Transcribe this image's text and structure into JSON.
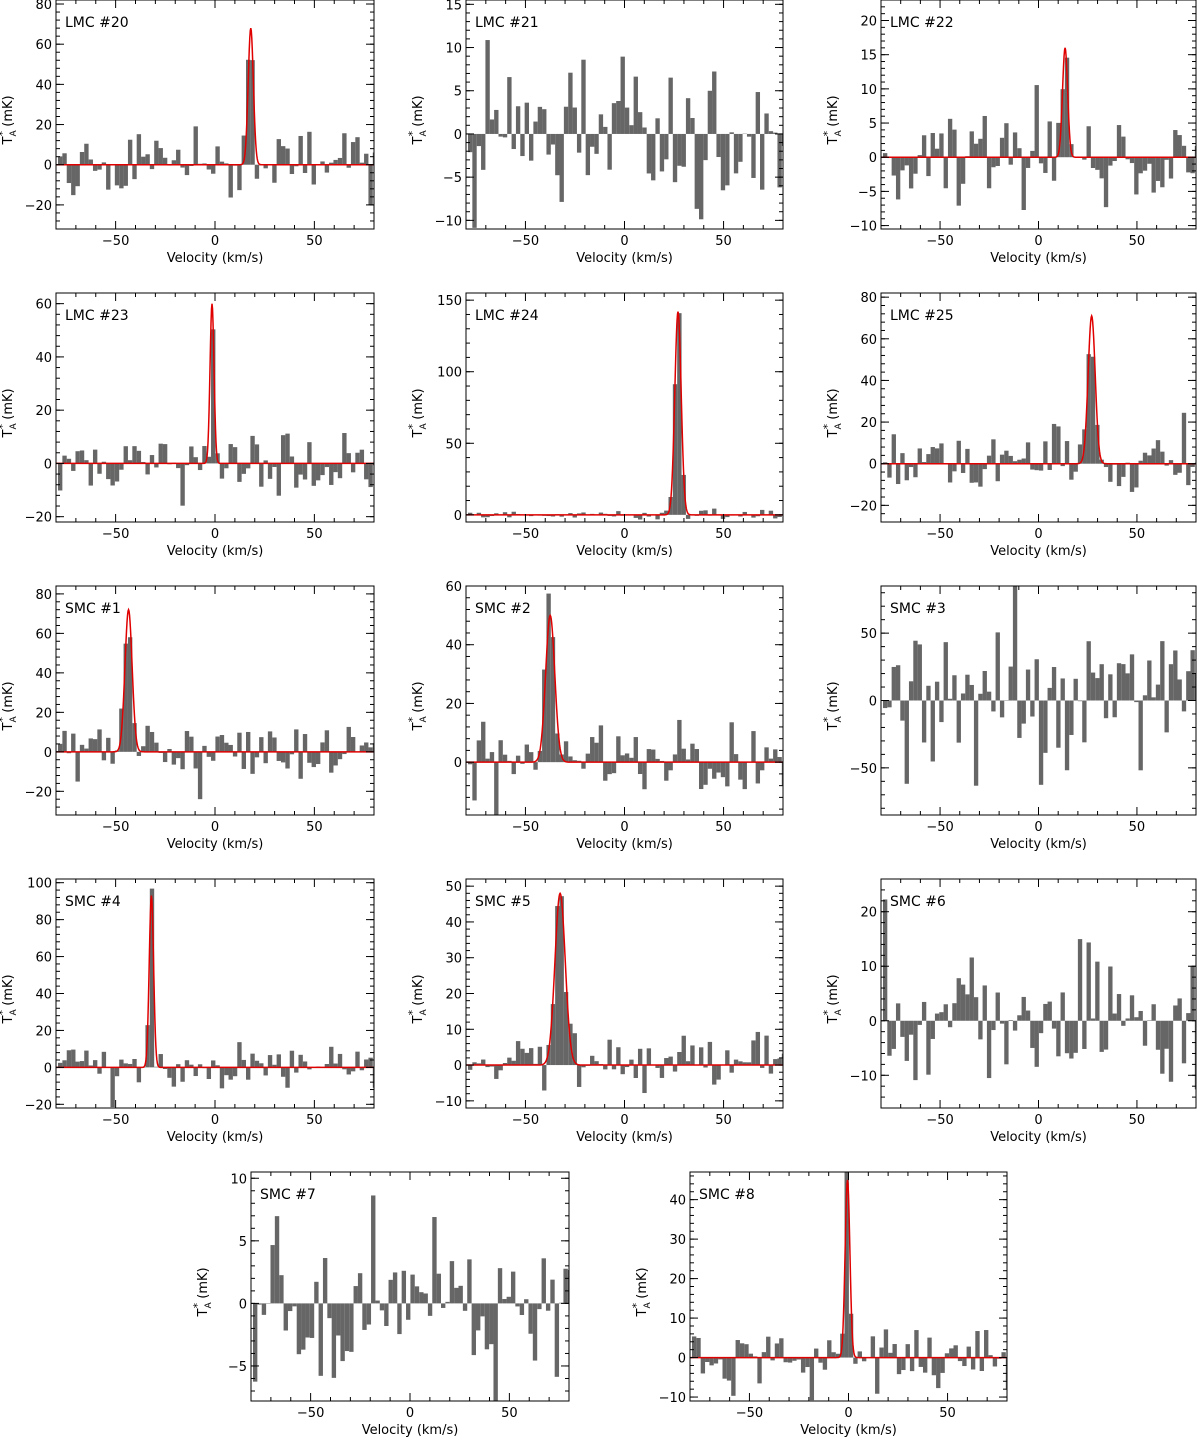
{
  "figure": {
    "xlabel": "Velocity (km/s)",
    "ylabel_main": "T",
    "ylabel_sub": "A",
    "ylabel_sup": "*",
    "ylabel_unit": " (mK)",
    "bar_color": "#666666",
    "fit_color": "#e00000"
  },
  "chart_data": [
    {
      "type": "bar",
      "title": "LMC  #20",
      "xlim": [
        -80,
        80
      ],
      "ylim": [
        -32,
        82
      ],
      "xticks": [
        -50,
        0,
        50
      ],
      "xtick_labels": [
        "−50",
        "0",
        "50"
      ],
      "yticks": [
        -20,
        0,
        20,
        40,
        60,
        80
      ],
      "ytick_labels": [
        "−20",
        "0",
        "20",
        "40",
        "60",
        "80"
      ],
      "peak": {
        "amp": 68,
        "center": 18,
        "sigma": 1.3
      },
      "noise": 8,
      "seed": 20
    },
    {
      "type": "bar",
      "title": "LMC  #21",
      "xlim": [
        -80,
        80
      ],
      "ylim": [
        -11,
        15.5
      ],
      "xticks": [
        -50,
        0,
        50
      ],
      "xtick_labels": [
        "−50",
        "0",
        "50"
      ],
      "yticks": [
        -10,
        -5,
        0,
        5,
        10,
        15
      ],
      "ytick_labels": [
        "−10",
        "−5",
        "0",
        "5",
        "10",
        "15"
      ],
      "peak": null,
      "noise": 5,
      "seed": 21
    },
    {
      "type": "bar",
      "title": "LMC  #22",
      "xlim": [
        -80,
        80
      ],
      "ylim": [
        -10.5,
        23
      ],
      "xticks": [
        -50,
        0,
        50
      ],
      "xtick_labels": [
        "−50",
        "0",
        "50"
      ],
      "yticks": [
        -10,
        -5,
        0,
        5,
        10,
        15,
        20
      ],
      "ytick_labels": [
        "−10",
        "−5",
        "0",
        "5",
        "10",
        "15",
        "20"
      ],
      "peak": {
        "amp": 16,
        "center": 13.5,
        "sigma": 1.3
      },
      "noise": 4,
      "seed": 22
    },
    {
      "type": "bar",
      "title": "LMC  #23",
      "xlim": [
        -80,
        80
      ],
      "ylim": [
        -22,
        64
      ],
      "xticks": [
        -50,
        0,
        50
      ],
      "xtick_labels": [
        "−50",
        "0",
        "50"
      ],
      "yticks": [
        -20,
        0,
        20,
        40,
        60
      ],
      "ytick_labels": [
        "−20",
        "0",
        "20",
        "40",
        "60"
      ],
      "peak": {
        "amp": 60,
        "center": -1.5,
        "sigma": 1.0
      },
      "noise": 6,
      "seed": 23
    },
    {
      "type": "bar",
      "title": "LMC  #24",
      "xlim": [
        -80,
        80
      ],
      "ylim": [
        -5,
        155
      ],
      "xticks": [
        -50,
        0,
        50
      ],
      "xtick_labels": [
        "−50",
        "0",
        "50"
      ],
      "yticks": [
        0,
        50,
        100,
        150
      ],
      "ytick_labels": [
        "0",
        "50",
        "100",
        "150"
      ],
      "peak": {
        "amp": 142,
        "center": 27,
        "sigma": 1.6
      },
      "noise": 2,
      "seed": 24
    },
    {
      "type": "bar",
      "title": "LMC  #25",
      "xlim": [
        -80,
        80
      ],
      "ylim": [
        -28,
        82
      ],
      "xticks": [
        -50,
        0,
        50
      ],
      "xtick_labels": [
        "−50",
        "0",
        "50"
      ],
      "yticks": [
        -20,
        0,
        20,
        40,
        60,
        80
      ],
      "ytick_labels": [
        "−20",
        "0",
        "20",
        "40",
        "60",
        "80"
      ],
      "peak": {
        "amp": 71,
        "center": 27,
        "sigma": 1.8
      },
      "noise": 8,
      "seed": 25
    },
    {
      "type": "bar",
      "title": "SMC  #1",
      "xlim": [
        -80,
        80
      ],
      "ylim": [
        -32,
        84
      ],
      "xticks": [
        -50,
        0,
        50
      ],
      "xtick_labels": [
        "−50",
        "0",
        "50"
      ],
      "yticks": [
        -20,
        0,
        20,
        40,
        60,
        80
      ],
      "ytick_labels": [
        "−20",
        "0",
        "20",
        "40",
        "60",
        "80"
      ],
      "peak": {
        "amp": 72,
        "center": -43.5,
        "sigma": 1.8
      },
      "noise": 8,
      "seed": 31
    },
    {
      "type": "bar",
      "title": "SMC  #2",
      "xlim": [
        -80,
        80
      ],
      "ylim": [
        -18,
        60
      ],
      "xticks": [
        -50,
        0,
        50
      ],
      "xtick_labels": [
        "−50",
        "0",
        "50"
      ],
      "yticks": [
        0,
        20,
        40,
        60
      ],
      "ytick_labels": [
        "0",
        "20",
        "40",
        "60"
      ],
      "peak": {
        "amp": 50,
        "center": -37.5,
        "sigma": 2.3
      },
      "noise": 6,
      "seed": 32
    },
    {
      "type": "bar",
      "title": "SMC  #3",
      "xlim": [
        -80,
        80
      ],
      "ylim": [
        -85,
        85
      ],
      "xticks": [
        -50,
        0,
        50
      ],
      "xtick_labels": [
        "−50",
        "0",
        "50"
      ],
      "yticks": [
        -50,
        0,
        50
      ],
      "ytick_labels": [
        "−50",
        "0",
        "50"
      ],
      "peak": null,
      "noise": 30,
      "seed": 33
    },
    {
      "type": "bar",
      "title": "SMC  #4",
      "xlim": [
        -80,
        80
      ],
      "ylim": [
        -22,
        102
      ],
      "xticks": [
        -50,
        0,
        50
      ],
      "xtick_labels": [
        "−50",
        "0",
        "50"
      ],
      "yticks": [
        -20,
        0,
        20,
        40,
        60,
        80,
        100
      ],
      "ytick_labels": [
        "−20",
        "0",
        "20",
        "40",
        "60",
        "80",
        "100"
      ],
      "peak": {
        "amp": 93,
        "center": -32,
        "sigma": 1.1
      },
      "noise": 7,
      "seed": 34
    },
    {
      "type": "bar",
      "title": "SMC  #5",
      "xlim": [
        -80,
        80
      ],
      "ylim": [
        -12,
        52
      ],
      "xticks": [
        -50,
        0,
        50
      ],
      "xtick_labels": [
        "−50",
        "0",
        "50"
      ],
      "yticks": [
        -10,
        0,
        10,
        20,
        30,
        40,
        50
      ],
      "ytick_labels": [
        "−10",
        "0",
        "10",
        "20",
        "30",
        "40",
        "50"
      ],
      "peak": {
        "amp": 48,
        "center": -32.5,
        "sigma": 2.6
      },
      "noise": 4,
      "seed": 35
    },
    {
      "type": "bar",
      "title": "SMC  #6",
      "xlim": [
        -80,
        80
      ],
      "ylim": [
        -16,
        26
      ],
      "xticks": [
        -50,
        0,
        50
      ],
      "xtick_labels": [
        "−50",
        "0",
        "50"
      ],
      "yticks": [
        -10,
        0,
        10,
        20
      ],
      "ytick_labels": [
        "−10",
        "0",
        "10",
        "20"
      ],
      "peak": null,
      "noise": 7,
      "seed": 36
    },
    {
      "type": "bar",
      "title": "SMC  #7",
      "xlim": [
        -80,
        80
      ],
      "ylim": [
        -7.8,
        10.5
      ],
      "xticks": [
        -50,
        0,
        50
      ],
      "xtick_labels": [
        "−50",
        "0",
        "50"
      ],
      "yticks": [
        -5,
        0,
        5,
        10
      ],
      "ytick_labels": [
        "−5",
        "0",
        "5",
        "10"
      ],
      "peak": null,
      "noise": 3,
      "seed": 37
    },
    {
      "type": "bar",
      "title": "SMC  #8",
      "xlim": [
        -80,
        80
      ],
      "ylim": [
        -11,
        47
      ],
      "xticks": [
        -50,
        0,
        50
      ],
      "xtick_labels": [
        "−50",
        "0",
        "50"
      ],
      "yticks": [
        -10,
        0,
        10,
        20,
        30,
        40
      ],
      "ytick_labels": [
        "−10",
        "0",
        "10",
        "20",
        "30",
        "40"
      ],
      "peak": {
        "amp": 45,
        "center": -0.5,
        "sigma": 1.2
      },
      "noise": 4,
      "seed": 38
    }
  ]
}
